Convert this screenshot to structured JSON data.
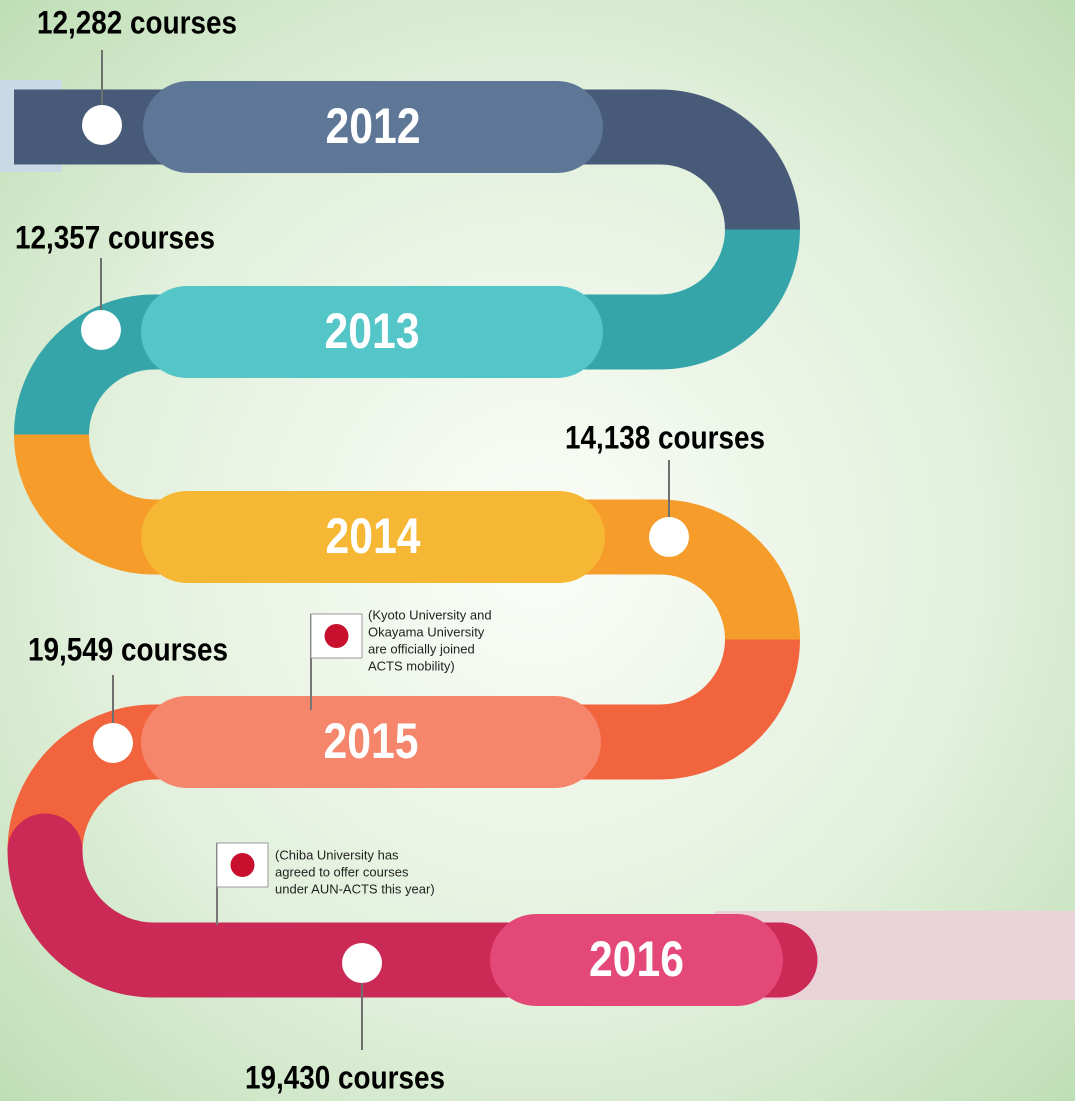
{
  "milestones": [
    {
      "year": "2012",
      "courses": "12,282 courses"
    },
    {
      "year": "2013",
      "courses": "12,357 courses"
    },
    {
      "year": "2014",
      "courses": "14,138 courses"
    },
    {
      "year": "2015",
      "courses": "19,549 courses",
      "note": [
        "(Kyoto University and",
        "Okayama University",
        " are officially joined",
        "ACTS mobility)"
      ]
    },
    {
      "year": "2016",
      "courses": "19,430 courses",
      "note": [
        "(Chiba University has",
        "agreed to offer courses",
        "under AUN-ACTS this year)"
      ]
    }
  ]
}
